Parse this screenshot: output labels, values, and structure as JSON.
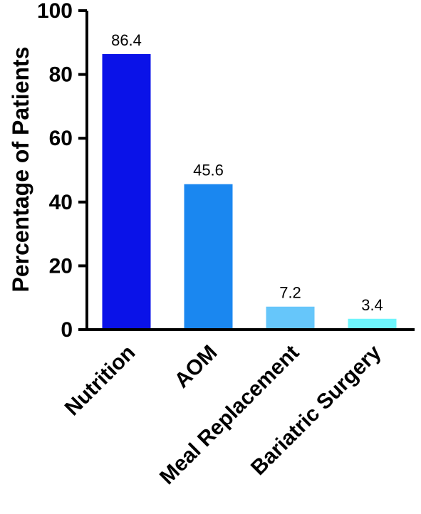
{
  "chart_data": {
    "type": "bar",
    "title": "",
    "xlabel": "",
    "ylabel": "Percentage of Patients",
    "ylim": [
      0,
      100
    ],
    "yticks": [
      0,
      20,
      40,
      60,
      80,
      100
    ],
    "grid": false,
    "categories": [
      "Nutrition",
      "AOM",
      "Meal Replacement",
      "Bariatric Surgery"
    ],
    "values": [
      86.4,
      45.6,
      7.2,
      3.4
    ],
    "value_labels": [
      "86.4",
      "45.6",
      "7.2",
      "3.4"
    ],
    "colors": [
      "#0A12E8",
      "#1A87F0",
      "#66C6FA",
      "#6FF5FC"
    ]
  }
}
